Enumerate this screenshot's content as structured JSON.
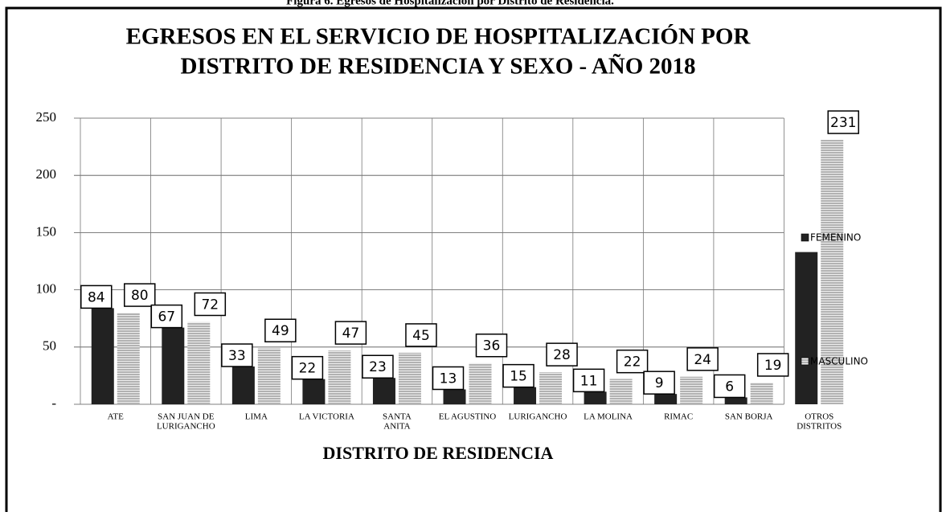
{
  "chart_data": {
    "type": "bar",
    "caption": "Figura 6. Egresos de Hospitalización por Distrito de Residencia.",
    "title": [
      "EGRESOS EN EL SERVICIO DE HOSPITALIZACIÓN  POR",
      "DISTRITO DE RESIDENCIA Y SEXO - AÑO 2018"
    ],
    "x_label": "DISTRITO DE RESIDENCIA",
    "categories": [
      [
        "ATE"
      ],
      [
        "SAN JUAN DE",
        "LURIGANCHO"
      ],
      [
        "LIMA"
      ],
      [
        "LA VICTORIA"
      ],
      [
        "SANTA",
        "ANITA"
      ],
      [
        "EL AGUSTINO"
      ],
      [
        "LURIGANCHO"
      ],
      [
        "LA MOLINA"
      ],
      [
        "RIMAC"
      ],
      [
        "SAN BORJA"
      ],
      [
        "OTROS",
        "DISTRITOS"
      ]
    ],
    "series": [
      {
        "name": "FEMENINO",
        "color": "#222222",
        "values": [
          84,
          67,
          33,
          22,
          23,
          13,
          15,
          11,
          9,
          6,
          133
        ],
        "value_labels": [
          "84",
          "67",
          "33",
          "22",
          "23",
          "13",
          "15",
          "11",
          "9",
          "6",
          null
        ]
      },
      {
        "name": "MASCULINO",
        "color": "#aaaaaa",
        "values": [
          80,
          72,
          49,
          47,
          45,
          36,
          28,
          22,
          24,
          19,
          231
        ]
      }
    ],
    "ylim": [
      0,
      250
    ],
    "yticks": [
      {
        "value": 0,
        "label": "-"
      },
      50,
      100,
      150,
      200,
      250
    ],
    "grid": true
  }
}
